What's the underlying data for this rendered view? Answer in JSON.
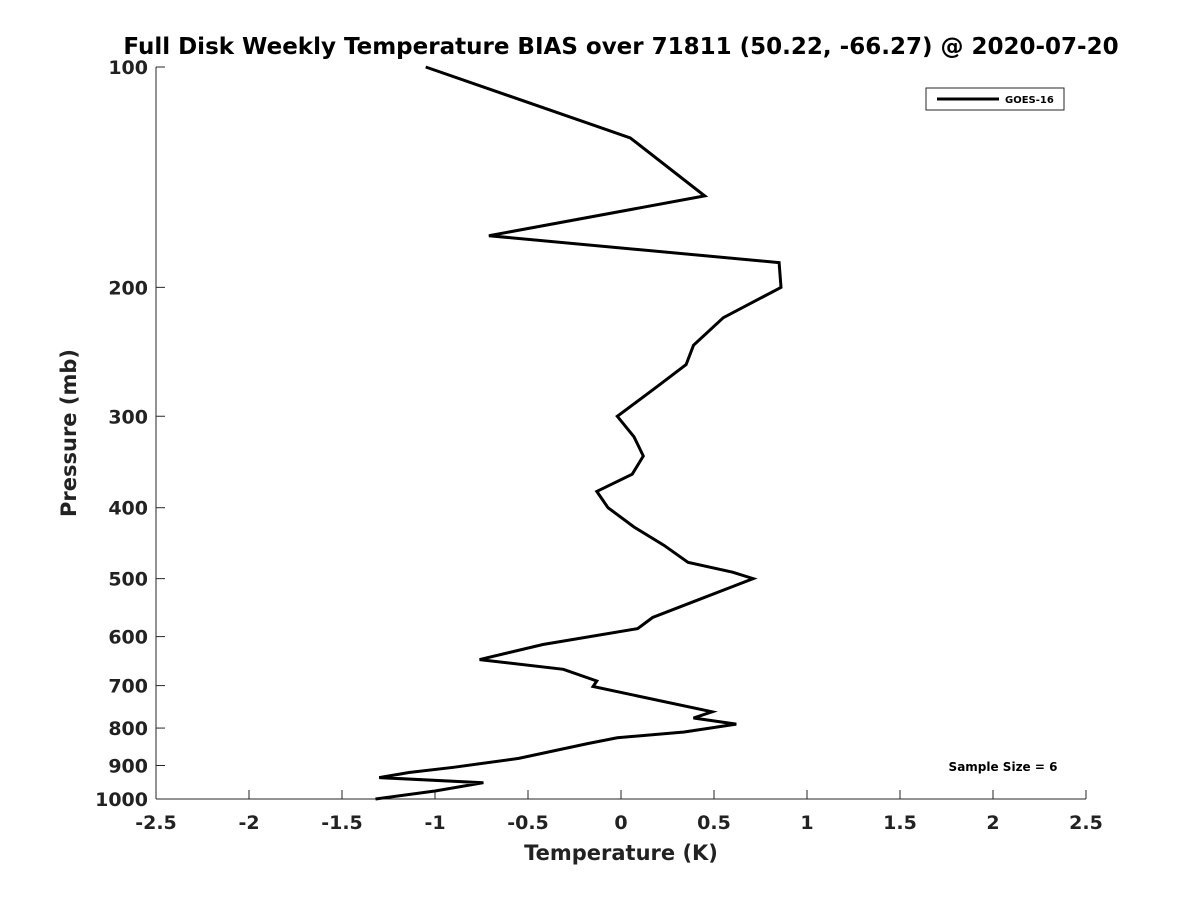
{
  "chart_data": {
    "type": "line",
    "title": "Full Disk Weekly Temperature BIAS over 71811 (50.22, -66.27) @ 2020-07-20",
    "xlabel": "Temperature (K)",
    "ylabel": "Pressure (mb)",
    "xlim": [
      -2.5,
      2.5
    ],
    "ylim": [
      100,
      1000
    ],
    "y_scale": "log",
    "y_reversed": true,
    "x_ticks": [
      "-2.5",
      "-2",
      "-1.5",
      "-1",
      "-0.5",
      "0",
      "0.5",
      "1",
      "1.5",
      "2",
      "2.5"
    ],
    "y_ticks": [
      "100",
      "200",
      "300",
      "400",
      "500",
      "600",
      "700",
      "800",
      "900",
      "1000"
    ],
    "grid": false,
    "legend_position": "top-right",
    "series": [
      {
        "name": "GOES-16",
        "color": "#000000",
        "points": [
          {
            "x": -1.05,
            "y": 100
          },
          {
            "x": 0.05,
            "y": 125
          },
          {
            "x": 0.45,
            "y": 150
          },
          {
            "x": -0.71,
            "y": 170
          },
          {
            "x": 0.85,
            "y": 185
          },
          {
            "x": 0.86,
            "y": 200
          },
          {
            "x": 0.55,
            "y": 220
          },
          {
            "x": 0.39,
            "y": 240
          },
          {
            "x": 0.35,
            "y": 255
          },
          {
            "x": 0.18,
            "y": 275
          },
          {
            "x": -0.02,
            "y": 300
          },
          {
            "x": 0.07,
            "y": 320
          },
          {
            "x": 0.12,
            "y": 340
          },
          {
            "x": 0.06,
            "y": 360
          },
          {
            "x": -0.13,
            "y": 380
          },
          {
            "x": -0.07,
            "y": 400
          },
          {
            "x": 0.07,
            "y": 425
          },
          {
            "x": 0.23,
            "y": 450
          },
          {
            "x": 0.36,
            "y": 475
          },
          {
            "x": 0.6,
            "y": 490
          },
          {
            "x": 0.71,
            "y": 500
          },
          {
            "x": 0.58,
            "y": 515
          },
          {
            "x": 0.41,
            "y": 535
          },
          {
            "x": 0.17,
            "y": 565
          },
          {
            "x": 0.09,
            "y": 585
          },
          {
            "x": -0.42,
            "y": 615
          },
          {
            "x": -0.76,
            "y": 645
          },
          {
            "x": -0.31,
            "y": 665
          },
          {
            "x": -0.13,
            "y": 690
          },
          {
            "x": -0.15,
            "y": 702
          },
          {
            "x": 0.49,
            "y": 760
          },
          {
            "x": 0.39,
            "y": 775
          },
          {
            "x": 0.62,
            "y": 790
          },
          {
            "x": 0.34,
            "y": 810
          },
          {
            "x": -0.02,
            "y": 825
          },
          {
            "x": -0.18,
            "y": 840
          },
          {
            "x": -0.55,
            "y": 880
          },
          {
            "x": -0.9,
            "y": 905
          },
          {
            "x": -1.14,
            "y": 920
          },
          {
            "x": -1.3,
            "y": 935
          },
          {
            "x": -0.74,
            "y": 950
          },
          {
            "x": -1.0,
            "y": 975
          },
          {
            "x": -1.32,
            "y": 1000
          }
        ]
      }
    ],
    "annotations": [
      {
        "text": "Sample Size = 6",
        "position": "bottom-right"
      }
    ]
  }
}
